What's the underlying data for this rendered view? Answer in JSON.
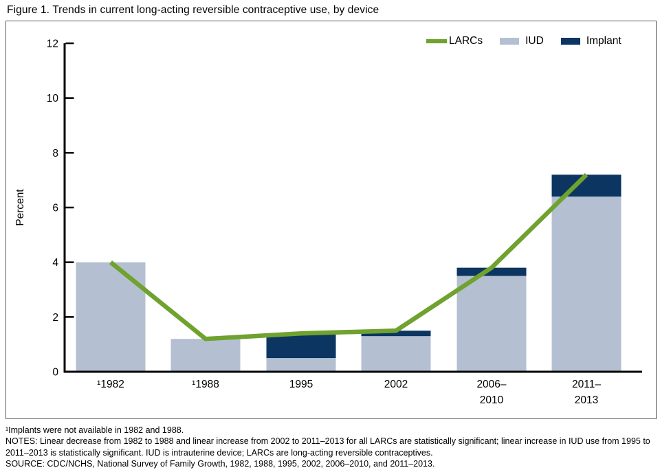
{
  "title": "Figure 1. Trends in current long-acting reversible contraceptive use, by device",
  "chart_data": {
    "type": "bar",
    "subtype": "stacked bars with overlaid line series",
    "title": "Figure 1. Trends in current long-acting reversible contraceptive use, by device",
    "categories": [
      "¹1982",
      "¹1988",
      "1995",
      "2002",
      "2006–2010",
      "2011–2013"
    ],
    "category_lines": [
      [
        "¹1982"
      ],
      [
        "¹1988"
      ],
      [
        "1995"
      ],
      [
        "2002"
      ],
      [
        "2006–",
        "2010"
      ],
      [
        "2011–",
        "2013"
      ]
    ],
    "series": [
      {
        "name": "IUD",
        "type": "bar",
        "color": "#b4c0d2",
        "values": [
          4.0,
          1.2,
          0.5,
          1.3,
          3.5,
          6.4
        ]
      },
      {
        "name": "Implant",
        "type": "bar",
        "color": "#0c3561",
        "values": [
          0,
          0,
          0.9,
          0.2,
          0.3,
          0.8
        ]
      },
      {
        "name": "LARCs",
        "type": "line",
        "color": "#6fa22e",
        "values": [
          4.0,
          1.2,
          1.4,
          1.5,
          3.8,
          7.2
        ]
      }
    ],
    "stacked": true,
    "xlabel": "",
    "ylabel": "Percent",
    "ylim": [
      0,
      12
    ],
    "yticks": [
      0,
      2,
      4,
      6,
      8,
      10,
      12
    ],
    "ytick_interval": 2,
    "grid": false,
    "legend_position": "top-right",
    "axis_color": "#000000"
  },
  "footnotes": {
    "footnote1": "¹Implants were not available in 1982 and 1988.",
    "notes": "NOTES: Linear decrease from 1982 to 1988 and linear increase from 2002 to 2011–2013 for all LARCs are statistically significant; linear increase in IUD use from 1995 to 2011–2013 is statistically significant. IUD is intrauterine device; LARCs are long-acting reversible contraceptives.",
    "source": "SOURCE: CDC/NCHS, National Survey of Family Growth, 1982, 1988, 1995, 2002, 2006–2010, and 2011–2013."
  }
}
